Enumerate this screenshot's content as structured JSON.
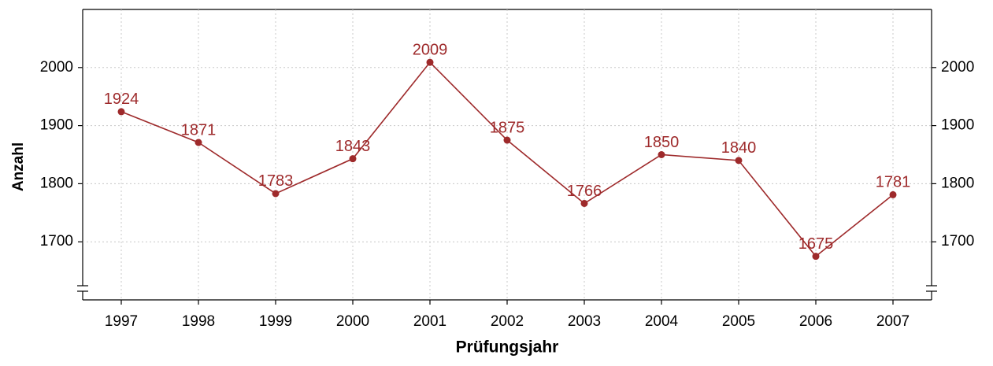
{
  "chart_data": {
    "type": "line",
    "x_label": "Prüfungsjahr",
    "y_label": "Anzahl",
    "x": [
      1997,
      1998,
      1999,
      2000,
      2001,
      2002,
      2003,
      2004,
      2005,
      2006,
      2007
    ],
    "series": [
      {
        "name": "Anzahl",
        "color": "#9e2a2b",
        "values": [
          1924,
          1871,
          1783,
          1843,
          2009,
          1875,
          1766,
          1850,
          1840,
          1675,
          1781
        ]
      }
    ],
    "xlim": [
      1996.5,
      2007.5
    ],
    "xticks": [
      1997,
      1998,
      1999,
      2000,
      2001,
      2002,
      2003,
      2004,
      2005,
      2006,
      2007
    ],
    "ylim": [
      1600,
      2100
    ],
    "yticks": [
      1700,
      1800,
      1900,
      2000
    ],
    "grid": true,
    "right_axis_labels": true
  }
}
